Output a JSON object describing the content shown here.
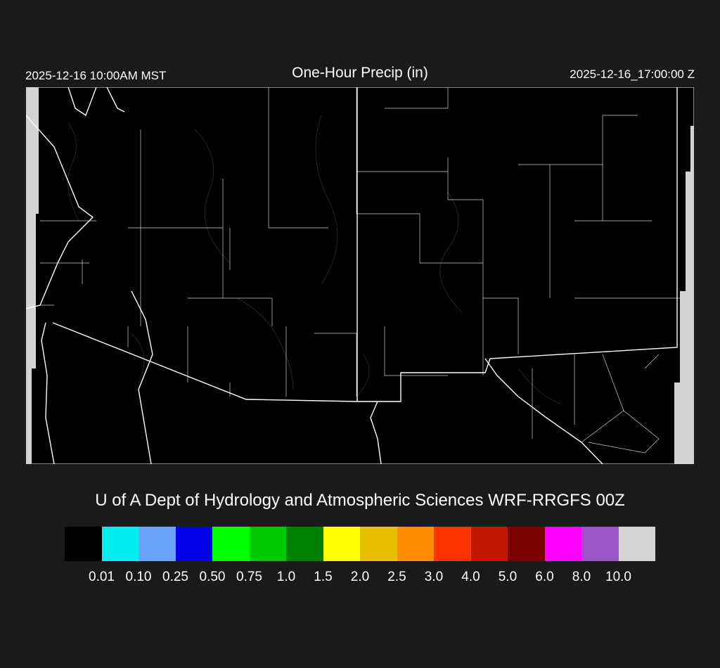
{
  "header": {
    "left_time": "2025-12-16 10:00AM MST",
    "title": "One-Hour Precip (in)",
    "right_time": "2025-12-16_17:00:00 Z"
  },
  "credit": "U of A Dept of Hydrology and Atmospheric Sciences WRF-RRGFS 00Z",
  "colorbar": {
    "colors": [
      "#000000",
      "#00eef0",
      "#6aa2f8",
      "#0000e6",
      "#00ff00",
      "#00c800",
      "#007e00",
      "#ffff00",
      "#e8c000",
      "#ff8c00",
      "#ff3200",
      "#c01800",
      "#780000",
      "#ff00ff",
      "#9a55c8",
      "#d4d4d4"
    ],
    "labels": [
      "0.01",
      "0.10",
      "0.25",
      "0.50",
      "0.75",
      "1.0",
      "1.5",
      "2.0",
      "2.5",
      "3.0",
      "4.0",
      "5.0",
      "6.0",
      "8.0",
      "10.0"
    ]
  },
  "map": {
    "background": "#000000",
    "no_data_color": "#d3d3d3",
    "border_color": "#ffffff",
    "terrain_contour_color": "#4a3325"
  }
}
